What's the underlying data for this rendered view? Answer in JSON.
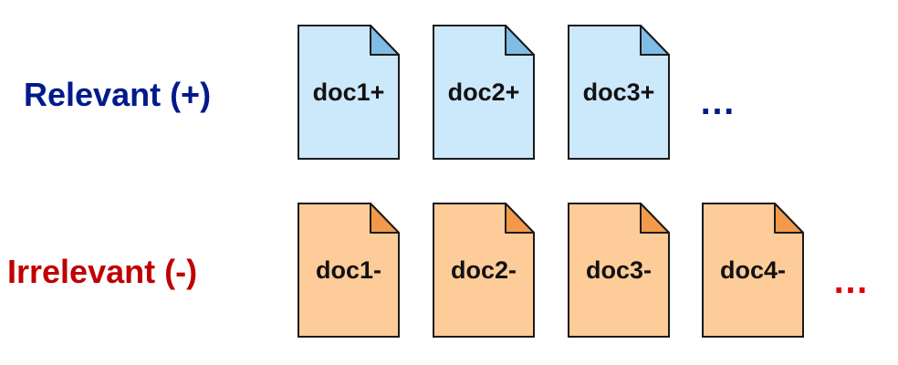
{
  "relevant": {
    "label": "Relevant (+)",
    "docs": [
      "doc1+",
      "doc2+",
      "doc3+"
    ],
    "ellipsis": "…",
    "doc_fill": "#cce8fb",
    "fold_fill": "#7fbde6",
    "label_color": "#001a8c"
  },
  "irrelevant": {
    "label": "Irrelevant (-)",
    "docs": [
      "doc1-",
      "doc2-",
      "doc3-",
      "doc4-"
    ],
    "ellipsis": "…",
    "doc_fill": "#fdcc99",
    "fold_fill": "#f39a4a",
    "label_color": "#c00000"
  }
}
